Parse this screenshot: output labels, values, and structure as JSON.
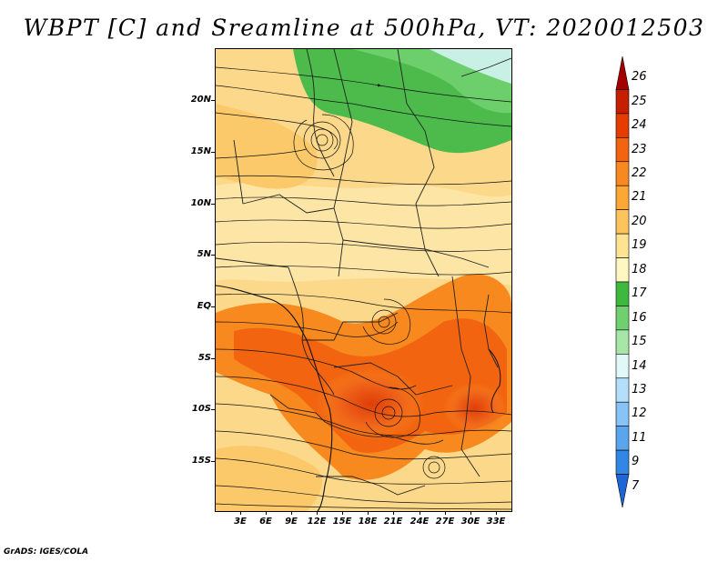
{
  "title": "WBPT [C] and Sreamline at 500hPa, VT: 2020012503",
  "footer": "GrADS: IGES/COLA",
  "axes": {
    "lat_labels": [
      "20N",
      "15N",
      "10N",
      "5N",
      "EQ",
      "5S",
      "10S",
      "15S"
    ],
    "lon_labels": [
      "3E",
      "6E",
      "9E",
      "12E",
      "15E",
      "18E",
      "21E",
      "24E",
      "27E",
      "30E",
      "33E"
    ]
  },
  "colorbar": {
    "levels": [
      "26",
      "25",
      "24",
      "23",
      "22",
      "21",
      "20",
      "19",
      "18",
      "17",
      "16",
      "15",
      "14",
      "13",
      "12",
      "11",
      "9",
      "7"
    ],
    "colors": [
      "#a50000",
      "#c81e00",
      "#e63c00",
      "#f26410",
      "#f7891f",
      "#fba834",
      "#fcc45a",
      "#fde392",
      "#fef7c2",
      "#3fb83f",
      "#70d070",
      "#a6e6a6",
      "#e1f8f8",
      "#b4defa",
      "#87c3f5",
      "#5aa5ee",
      "#3286e6",
      "#1c66d6"
    ]
  }
}
